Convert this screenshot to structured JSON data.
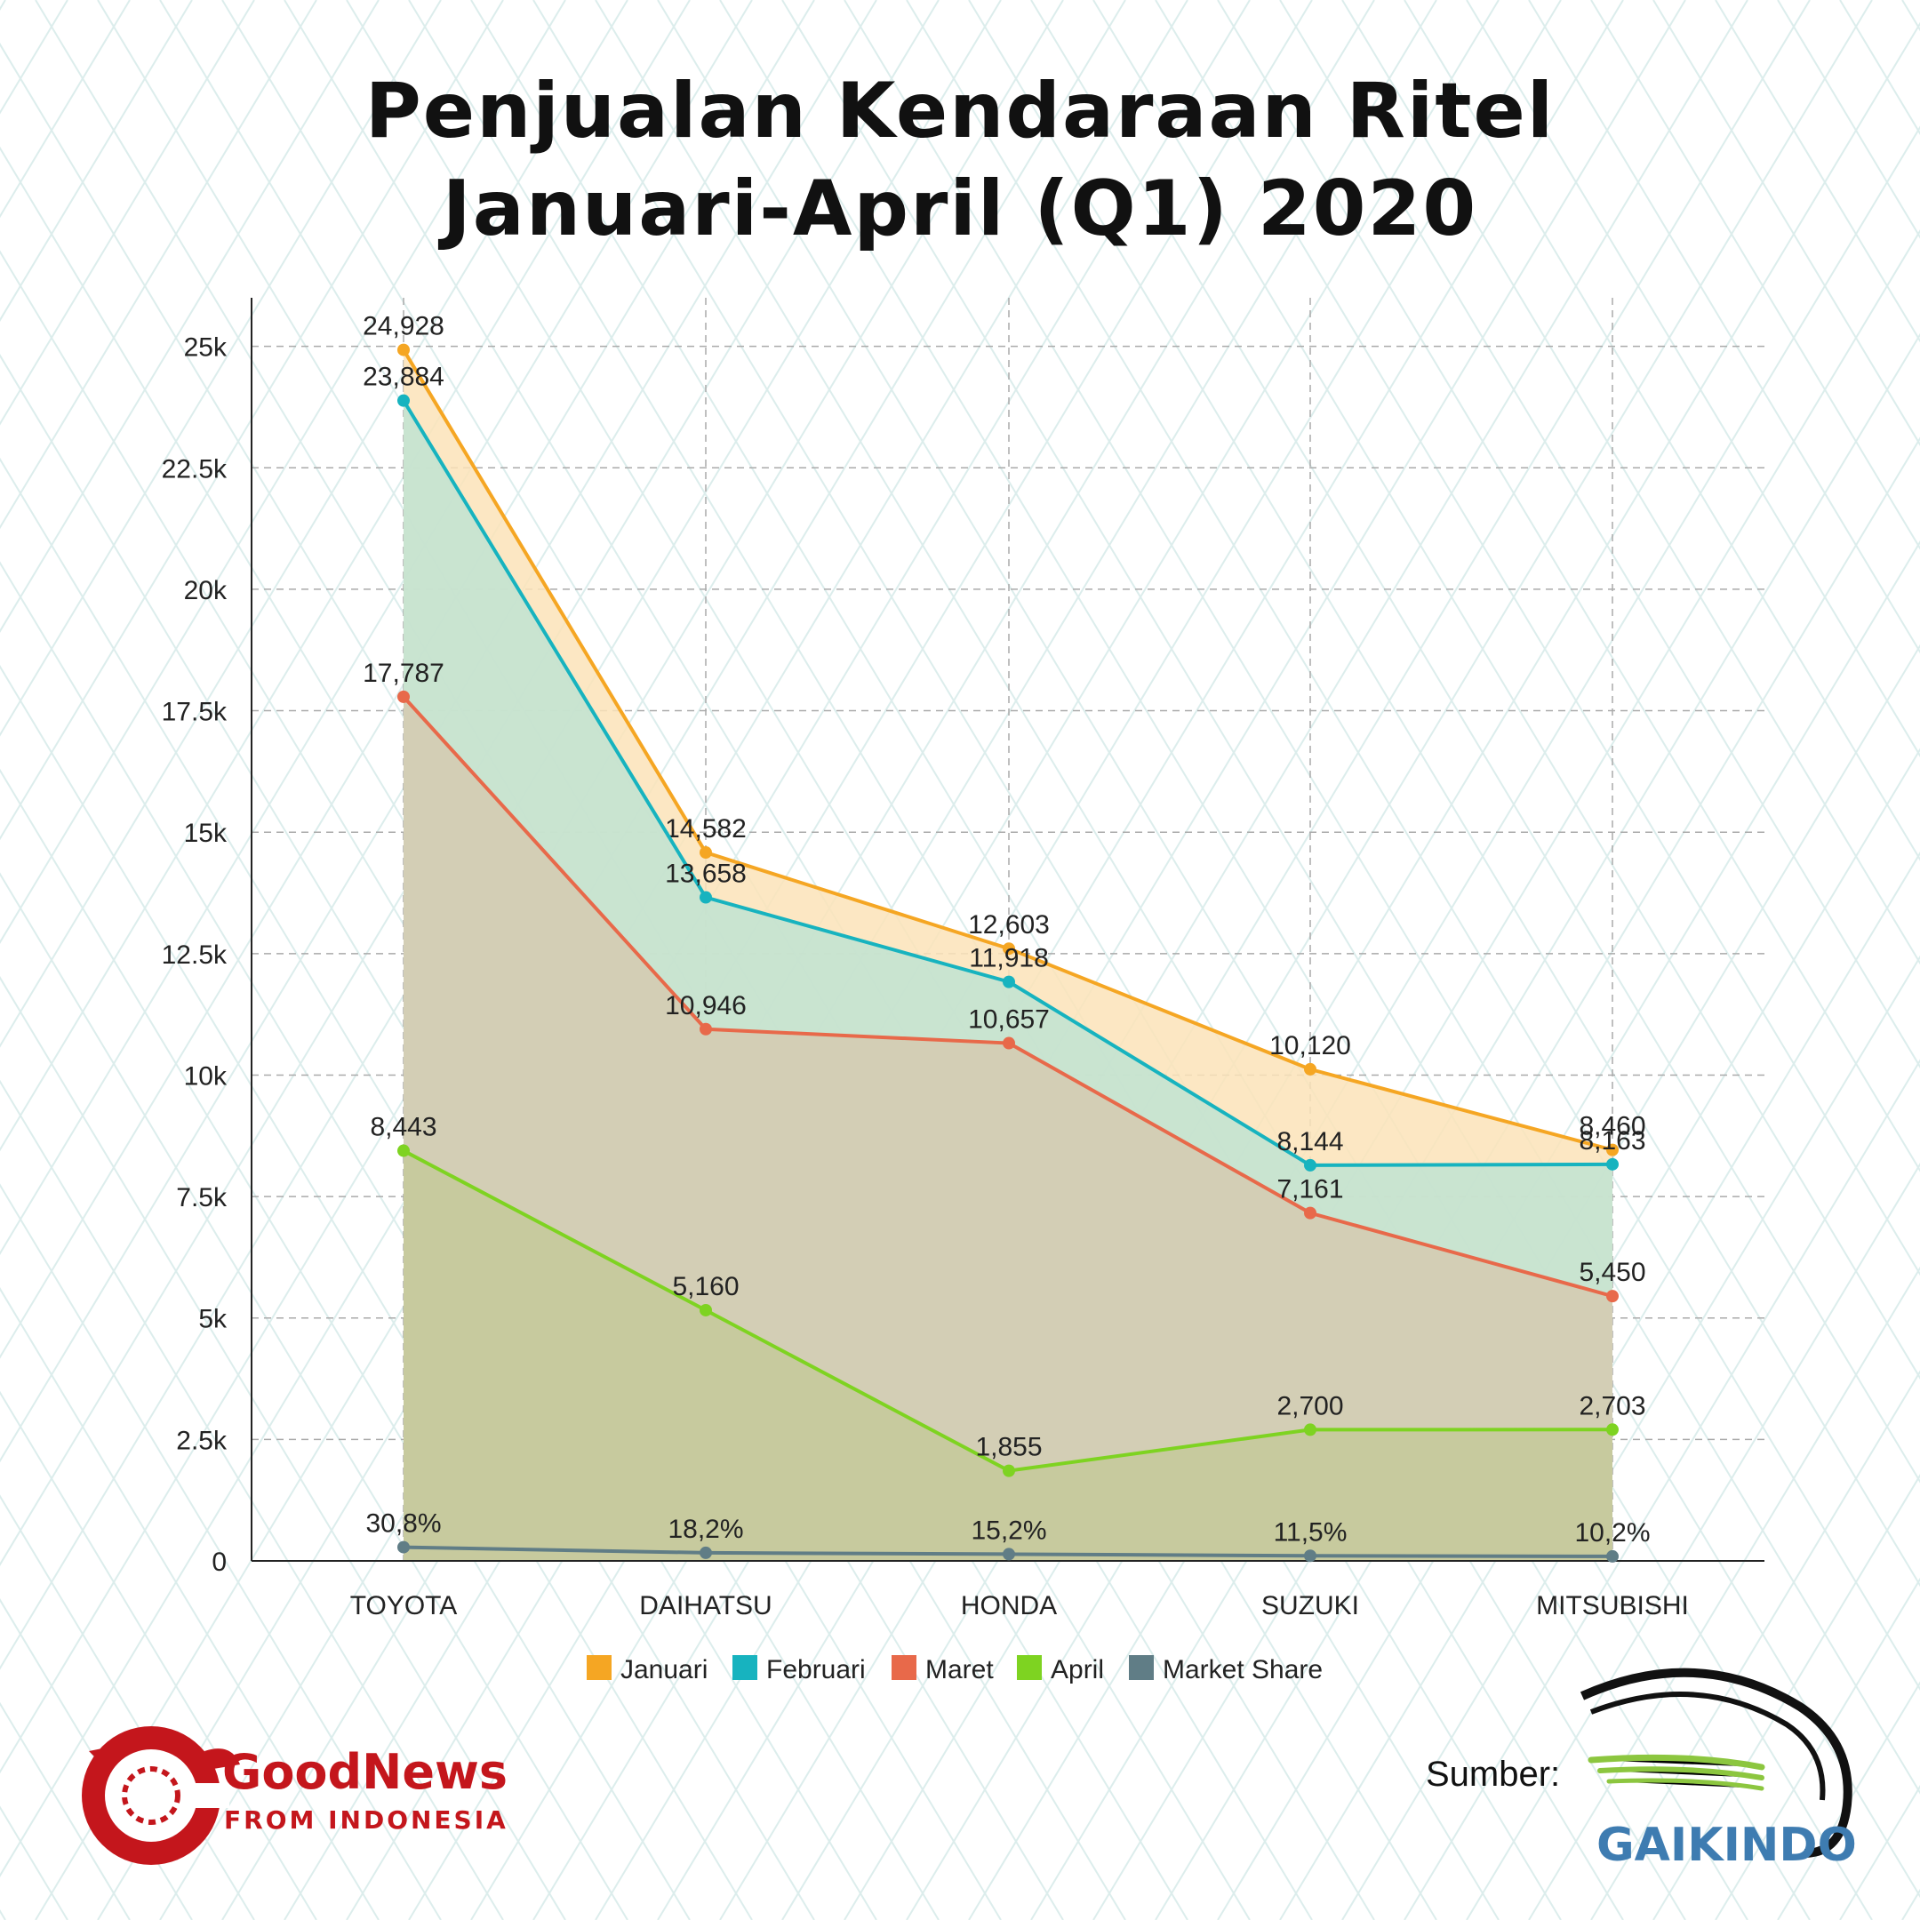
{
  "title_lines": [
    "Penjualan Kendaraan Ritel",
    "Januari-April (Q1) 2020"
  ],
  "chart_data": {
    "type": "area",
    "categories": [
      "TOYOTA",
      "DAIHATSU",
      "HONDA",
      "SUZUKI",
      "MITSUBISHI"
    ],
    "ylim": [
      0,
      26000
    ],
    "yticks": [
      0,
      2500,
      5000,
      7500,
      10000,
      12500,
      15000,
      17500,
      20000,
      22500,
      25000
    ],
    "ytick_labels": [
      "0",
      "2.5k",
      "5k",
      "7.5k",
      "10k",
      "12.5k",
      "15k",
      "17.5k",
      "20k",
      "22.5k",
      "25k"
    ],
    "grid": true,
    "legend_position": "bottom",
    "series": [
      {
        "name": "Januari",
        "color": "#F5A623",
        "fill": "#FBE3B8",
        "values": [
          24928,
          14582,
          12603,
          10120,
          8460
        ],
        "labels": [
          "24,928",
          "14,582",
          "12,603",
          "10,120",
          "8,460"
        ]
      },
      {
        "name": "Februari",
        "color": "#17B3BF",
        "fill": "#BFE3D2",
        "values": [
          23884,
          13658,
          11918,
          8144,
          8163
        ],
        "labels": [
          "23,884",
          "13,658",
          "11,918",
          "8,144",
          "8,163"
        ]
      },
      {
        "name": "Maret",
        "color": "#E8694A",
        "fill": "#D5CAB0",
        "values": [
          17787,
          10946,
          10657,
          7161,
          5450
        ],
        "labels": [
          "17,787",
          "10,946",
          "10,657",
          "7,161",
          "5,450"
        ]
      },
      {
        "name": "April",
        "color": "#7ED321",
        "fill": "#C4C99A",
        "values": [
          8443,
          5160,
          1855,
          2700,
          2703
        ],
        "labels": [
          "8,443",
          "5,160",
          "1,855",
          "2,700",
          "2,703"
        ]
      },
      {
        "name": "Market Share",
        "color": "#607D86",
        "fill": "none",
        "values": [
          30.8,
          18.2,
          15.2,
          11.5,
          10.2
        ],
        "labels": [
          "30,8%",
          "18,2%",
          "15,2%",
          "11,5%",
          "10,2%"
        ]
      }
    ]
  },
  "logo_goodnews": {
    "name": "GoodNews",
    "tagline": "FROM INDONESIA",
    "color": "#C4161C"
  },
  "source": {
    "label": "Sumber:",
    "logo_text": "GAIKINDO",
    "logo_color": "#3E7CB1"
  }
}
